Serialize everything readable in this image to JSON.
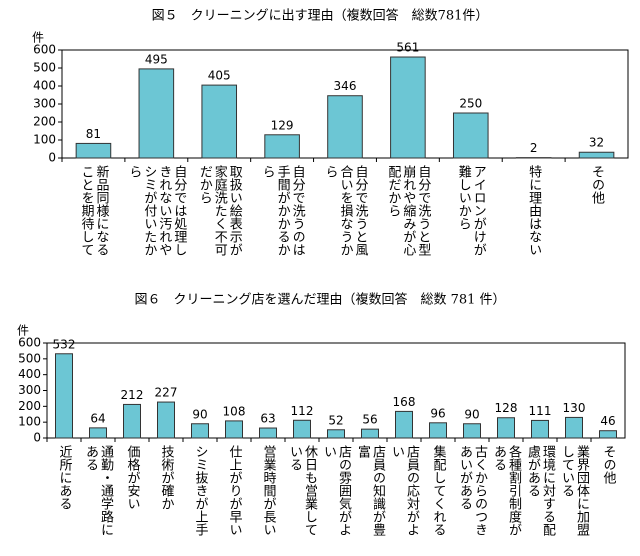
{
  "chart_data": [
    {
      "type": "bar",
      "title": "図５　クリーニングに出す理由（複数回答　総数781件）",
      "y_label": "件",
      "categories": [
        "新品同様になることを期待して",
        "自分では処理しきれない汚れやシミが付いたから",
        "取扱い絵表示が家庭洗たく不可だから",
        "自分で洗うのは手間がかかるから",
        "自分で洗うと風合いを損なうから",
        "自分で洗うと型崩れや縮みが心配だから",
        "アイロンがけが難しいから",
        "特に理由はない",
        "その他"
      ],
      "values": [
        81,
        495,
        405,
        129,
        346,
        561,
        250,
        2,
        32
      ],
      "color": "#6cc6d4",
      "ylim": [
        0,
        600
      ],
      "yticks": [
        0,
        100,
        200,
        300,
        400,
        500,
        600
      ]
    },
    {
      "type": "bar",
      "title": "図６　クリーニング店を選んだ理由（複数回答　総数 781 件）",
      "y_label": "件",
      "categories": [
        "近所にある",
        "通勤・通学路にある",
        "価格が安い",
        "技術が確か",
        "シミ抜きが上手",
        "仕上がりが早い",
        "営業時間が長い",
        "休日も営業している",
        "店の雰囲気がよい",
        "店員の知識が豊富",
        "店員の応対がよい",
        "集配してくれる",
        "古くからのつきあいがある",
        "各種割引制度がある",
        "環境に対する配慮がある",
        "業界団体に加盟している",
        "その他"
      ],
      "values": [
        532,
        64,
        212,
        227,
        90,
        108,
        63,
        112,
        52,
        56,
        168,
        96,
        90,
        128,
        111,
        130,
        46
      ],
      "color": "#6cc6d4",
      "ylim": [
        0,
        600
      ],
      "yticks": [
        0,
        100,
        200,
        300,
        400,
        500,
        600
      ]
    }
  ]
}
